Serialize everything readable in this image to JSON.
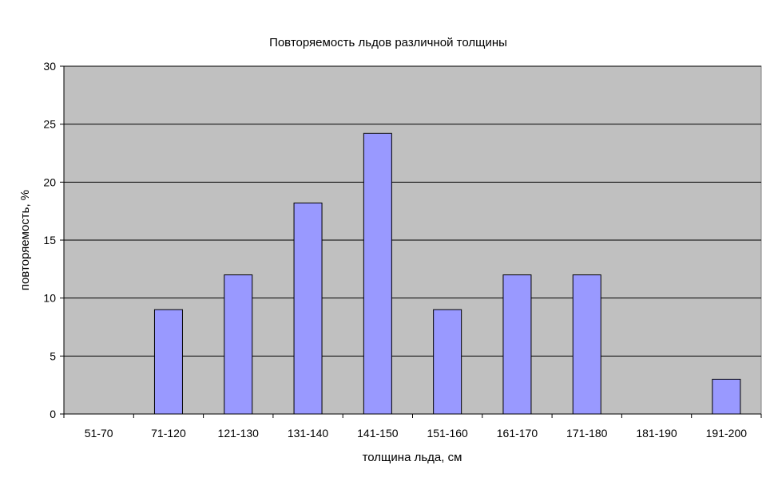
{
  "chart_data": {
    "type": "bar",
    "title": "Повторяемость льдов различной толщины",
    "xlabel": "толщина льда, см",
    "ylabel": "повторяемость, %",
    "categories": [
      "51-70",
      "71-120",
      "121-130",
      "131-140",
      "141-150",
      "151-160",
      "161-170",
      "171-180",
      "181-190",
      "191-200"
    ],
    "values": [
      0,
      9,
      12,
      18.2,
      24.2,
      9,
      12,
      12,
      0,
      3
    ],
    "ylim": [
      0,
      30
    ],
    "yticks": [
      0,
      5,
      10,
      15,
      20,
      25,
      30
    ],
    "grid": true,
    "legend": "none",
    "colors": {
      "plot_bg": "#c0c0c0",
      "bar_fill": "#9999ff",
      "bar_stroke": "#000000",
      "grid": "#000000"
    }
  }
}
